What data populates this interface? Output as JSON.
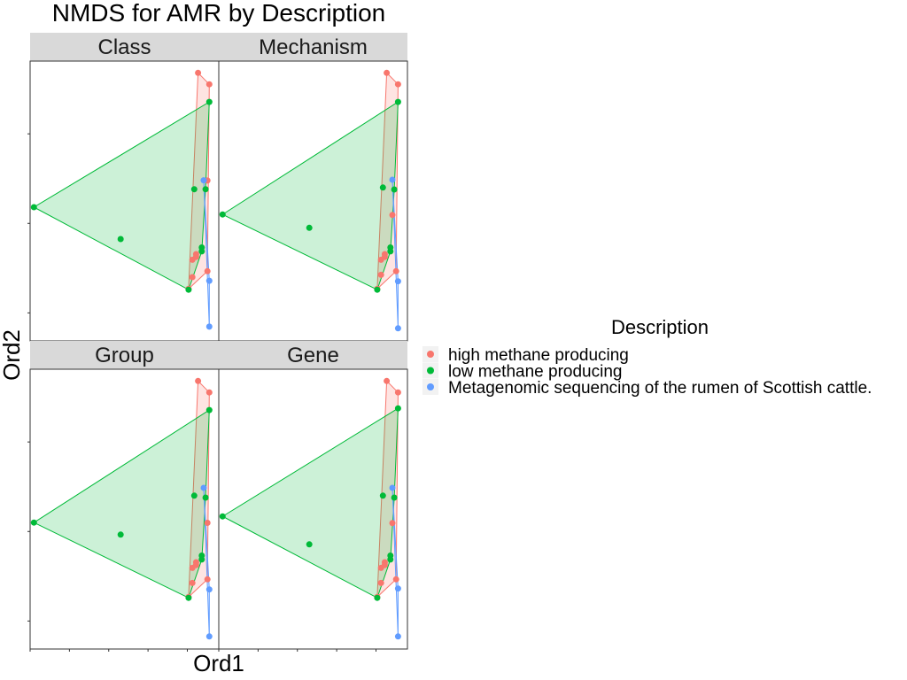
{
  "chart_data": {
    "type": "scatter",
    "title": "NMDS for AMR by Description",
    "xlabel": "Ord1",
    "ylabel": "Ord2",
    "legend": {
      "title": "Description",
      "placement": "right",
      "entries": [
        {
          "name": "high methane producing",
          "color": "#F8766D"
        },
        {
          "name": "low methane producing",
          "color": "#00BA38"
        },
        {
          "name": "Metagenomic sequencing of the rumen of Scottish cattle.",
          "color": "#619CFF"
        }
      ]
    },
    "xlim": [
      0,
      1
    ],
    "ylim": [
      0,
      1
    ],
    "grid": false,
    "facets": [
      {
        "label": "Class",
        "series": [
          {
            "name": "high methane producing",
            "hull": true,
            "points": [
              [
                0.89,
                0.958
              ],
              [
                0.95,
                0.917
              ],
              [
                0.94,
                0.573
              ],
              [
                0.94,
                0.249
              ],
              [
                0.88,
                0.31
              ],
              [
                0.88,
                0.3
              ],
              [
                0.86,
                0.29
              ],
              [
                0.86,
                0.228
              ],
              [
                0.84,
                0.186
              ]
            ]
          },
          {
            "name": "low methane producing",
            "hull": true,
            "points": [
              [
                0.95,
                0.854
              ],
              [
                0.02,
                0.478
              ],
              [
                0.48,
                0.364
              ],
              [
                0.87,
                0.542
              ],
              [
                0.93,
                0.542
              ],
              [
                0.91,
                0.334
              ],
              [
                0.91,
                0.32
              ],
              [
                0.84,
                0.183
              ]
            ]
          },
          {
            "name": "Metagenomic sequencing of the rumen of Scottish cattle.",
            "hull": true,
            "points": [
              [
                0.92,
                0.574
              ],
              [
                0.95,
                0.215
              ],
              [
                0.95,
                0.051
              ]
            ]
          }
        ]
      },
      {
        "label": "Mechanism",
        "series": [
          {
            "name": "high methane producing",
            "hull": true,
            "points": [
              [
                0.89,
                0.958
              ],
              [
                0.95,
                0.917
              ],
              [
                0.92,
                0.45
              ],
              [
                0.94,
                0.249
              ],
              [
                0.88,
                0.31
              ],
              [
                0.88,
                0.3
              ],
              [
                0.86,
                0.29
              ],
              [
                0.86,
                0.236
              ],
              [
                0.84,
                0.186
              ]
            ]
          },
          {
            "name": "low methane producing",
            "hull": true,
            "points": [
              [
                0.95,
                0.854
              ],
              [
                0.02,
                0.452
              ],
              [
                0.48,
                0.404
              ],
              [
                0.87,
                0.548
              ],
              [
                0.93,
                0.541
              ],
              [
                0.91,
                0.334
              ],
              [
                0.91,
                0.32
              ],
              [
                0.84,
                0.183
              ]
            ]
          },
          {
            "name": "Metagenomic sequencing of the rumen of Scottish cattle.",
            "hull": true,
            "points": [
              [
                0.92,
                0.576
              ],
              [
                0.95,
                0.213
              ],
              [
                0.95,
                0.045
              ]
            ]
          }
        ]
      },
      {
        "label": "Group",
        "series": [
          {
            "name": "high methane producing",
            "hull": true,
            "points": [
              [
                0.89,
                0.958
              ],
              [
                0.95,
                0.917
              ],
              [
                0.94,
                0.451
              ],
              [
                0.94,
                0.249
              ],
              [
                0.88,
                0.31
              ],
              [
                0.88,
                0.3
              ],
              [
                0.86,
                0.29
              ],
              [
                0.86,
                0.236
              ],
              [
                0.84,
                0.186
              ]
            ]
          },
          {
            "name": "low methane producing",
            "hull": true,
            "points": [
              [
                0.95,
                0.854
              ],
              [
                0.02,
                0.452
              ],
              [
                0.48,
                0.409
              ],
              [
                0.87,
                0.548
              ],
              [
                0.93,
                0.541
              ],
              [
                0.91,
                0.334
              ],
              [
                0.91,
                0.32
              ],
              [
                0.84,
                0.183
              ]
            ]
          },
          {
            "name": "Metagenomic sequencing of the rumen of Scottish cattle.",
            "hull": true,
            "points": [
              [
                0.92,
                0.576
              ],
              [
                0.95,
                0.213
              ],
              [
                0.95,
                0.045
              ]
            ]
          }
        ]
      },
      {
        "label": "Gene",
        "series": [
          {
            "name": "high methane producing",
            "hull": true,
            "points": [
              [
                0.89,
                0.958
              ],
              [
                0.95,
                0.917
              ],
              [
                0.92,
                0.45
              ],
              [
                0.94,
                0.249
              ],
              [
                0.88,
                0.31
              ],
              [
                0.88,
                0.3
              ],
              [
                0.86,
                0.29
              ],
              [
                0.86,
                0.236
              ],
              [
                0.84,
                0.186
              ]
            ]
          },
          {
            "name": "low methane producing",
            "hull": true,
            "points": [
              [
                0.95,
                0.86
              ],
              [
                0.02,
                0.474
              ],
              [
                0.48,
                0.374
              ],
              [
                0.87,
                0.548
              ],
              [
                0.93,
                0.541
              ],
              [
                0.91,
                0.334
              ],
              [
                0.91,
                0.32
              ],
              [
                0.84,
                0.183
              ]
            ]
          },
          {
            "name": "Metagenomic sequencing of the rumen of Scottish cattle.",
            "hull": true,
            "points": [
              [
                0.92,
                0.576
              ],
              [
                0.95,
                0.216
              ],
              [
                0.95,
                0.045
              ]
            ]
          }
        ]
      }
    ]
  }
}
